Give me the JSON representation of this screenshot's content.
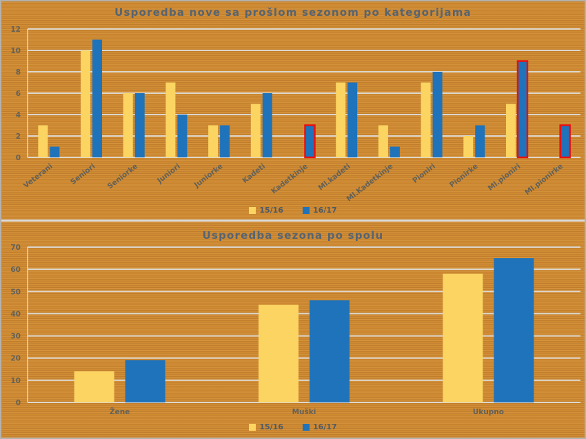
{
  "colors": {
    "background_orange": "#CF8A32",
    "gridline": "#DDD8CE",
    "axis_text": "#646158",
    "title_text": "#566472",
    "divider": "#DCDCDC",
    "series_yellow": "#FBD462",
    "series_blue": "#1E73BB",
    "highlight_red": "#EA1010"
  },
  "chart_data": [
    {
      "type": "bar",
      "title": "Usporedba nove sa prošlom sezonom po kategorijama",
      "categories": [
        "Veterani",
        "Seniori",
        "Seniorke",
        "Juniori",
        "Juniorke",
        "Kadeti",
        "Kadetkinje",
        "Ml.kadeti",
        "Ml.Kadetkinje",
        "Pioniri",
        "Pionirke",
        "Ml.pioniri",
        "Ml.pionirke"
      ],
      "series": [
        {
          "name": "15/16",
          "color": "#FBD462",
          "values": [
            3,
            10,
            6,
            7,
            3,
            5,
            0,
            7,
            3,
            7,
            2,
            5,
            0
          ]
        },
        {
          "name": "16/17",
          "color": "#1E73BB",
          "values": [
            1,
            11,
            6,
            4,
            3,
            6,
            3,
            7,
            1,
            8,
            3,
            9,
            3
          ],
          "highlighted_categories": [
            "Kadetkinje",
            "Ml.pioniri",
            "Ml.pionirke"
          ]
        }
      ],
      "highlight_color": "#EA1010",
      "ylim": [
        0,
        12
      ],
      "ytick_step": 2,
      "grid": true,
      "legend_position": "bottom",
      "x_label_rotation": -38,
      "notes": "bars with value 0 are not drawn; red outline marks highlighted 16/17 bars"
    },
    {
      "type": "bar",
      "title": "Usporedba sezona po spolu",
      "categories": [
        "Žene",
        "Muški",
        "Ukupno"
      ],
      "series": [
        {
          "name": "15/16",
          "color": "#FBD462",
          "values": [
            14,
            44,
            58
          ]
        },
        {
          "name": "16/17",
          "color": "#1E73BB",
          "values": [
            19,
            46,
            65
          ]
        }
      ],
      "ylim": [
        0,
        70
      ],
      "ytick_step": 10,
      "grid": true,
      "legend_position": "bottom",
      "x_label_rotation": 0
    }
  ]
}
